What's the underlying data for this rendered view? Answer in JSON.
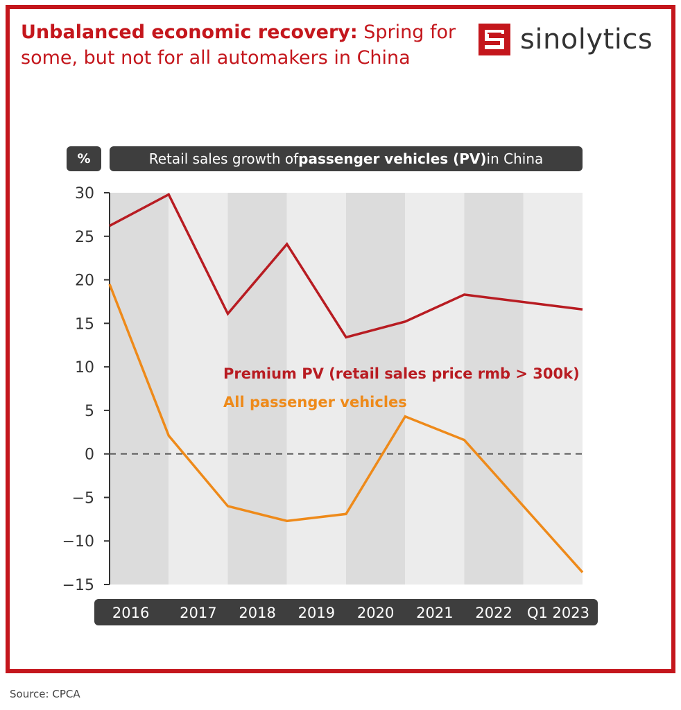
{
  "header": {
    "title_bold": "Unbalanced economic recovery:",
    "title_rest": " Spring for some, but not for all automakers in China"
  },
  "logo": {
    "text": "sinolytics",
    "icon": "sinolytics-logo-icon"
  },
  "chart_header": {
    "unit": "%",
    "title_pre": "Retail sales growth of ",
    "title_bold": "passenger vehicles (PV)",
    "title_post": " in China"
  },
  "chart_data": {
    "type": "line",
    "categories": [
      "2016",
      "2017",
      "2018",
      "2019",
      "2020",
      "2021",
      "2022",
      "Q1 2023"
    ],
    "series": [
      {
        "name": "Premium PV (retail sales price rmb > 300k)",
        "color": "#b81c22",
        "values": [
          26.2,
          29.8,
          16.1,
          24.1,
          13.4,
          15.2,
          18.3,
          16.6
        ]
      },
      {
        "name": "All passenger vehicles",
        "color": "#ee8a1a",
        "values": [
          19.5,
          2.1,
          -6.0,
          -7.7,
          -6.9,
          4.3,
          1.6,
          -13.6
        ]
      }
    ],
    "ylim": [
      -15,
      30
    ],
    "yticks": [
      "30",
      "25",
      "20",
      "15",
      "10",
      "5",
      "0",
      "−5",
      "−10",
      "−15"
    ],
    "reference_line": 0,
    "grid": false,
    "alternating_bands": true
  },
  "source": "Source: CPCA"
}
